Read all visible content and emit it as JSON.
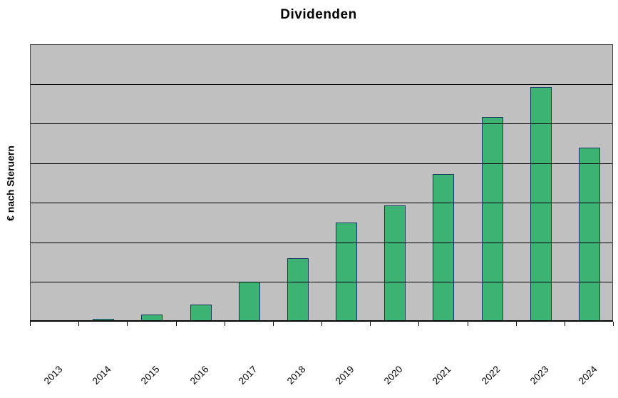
{
  "chart_data": {
    "type": "bar",
    "title": "Dividenden",
    "xlabel": "",
    "ylabel": "€ nach Steruern",
    "categories": [
      "2013",
      "2014",
      "2015",
      "2016",
      "2017",
      "2018",
      "2019",
      "2020",
      "2021",
      "2022",
      "2023",
      "2024"
    ],
    "values": [
      0,
      0.03,
      0.14,
      0.39,
      0.97,
      1.57,
      2.47,
      2.9,
      3.69,
      5.13,
      5.88,
      4.35
    ],
    "value_unit": "gridline-intervals (y axis has no numeric tick labels)",
    "ylim": [
      0,
      7
    ],
    "gridlines": "horizontal",
    "gridline_count_internal": 6,
    "legend": "none",
    "colors": {
      "bar_fill": "#3CB372",
      "bar_border": "#17375E",
      "plot_background": "#C0C0C0",
      "gridline": "#000000",
      "axis": "#000000",
      "text": "#000000",
      "page_background": "#FFFFFF"
    }
  }
}
